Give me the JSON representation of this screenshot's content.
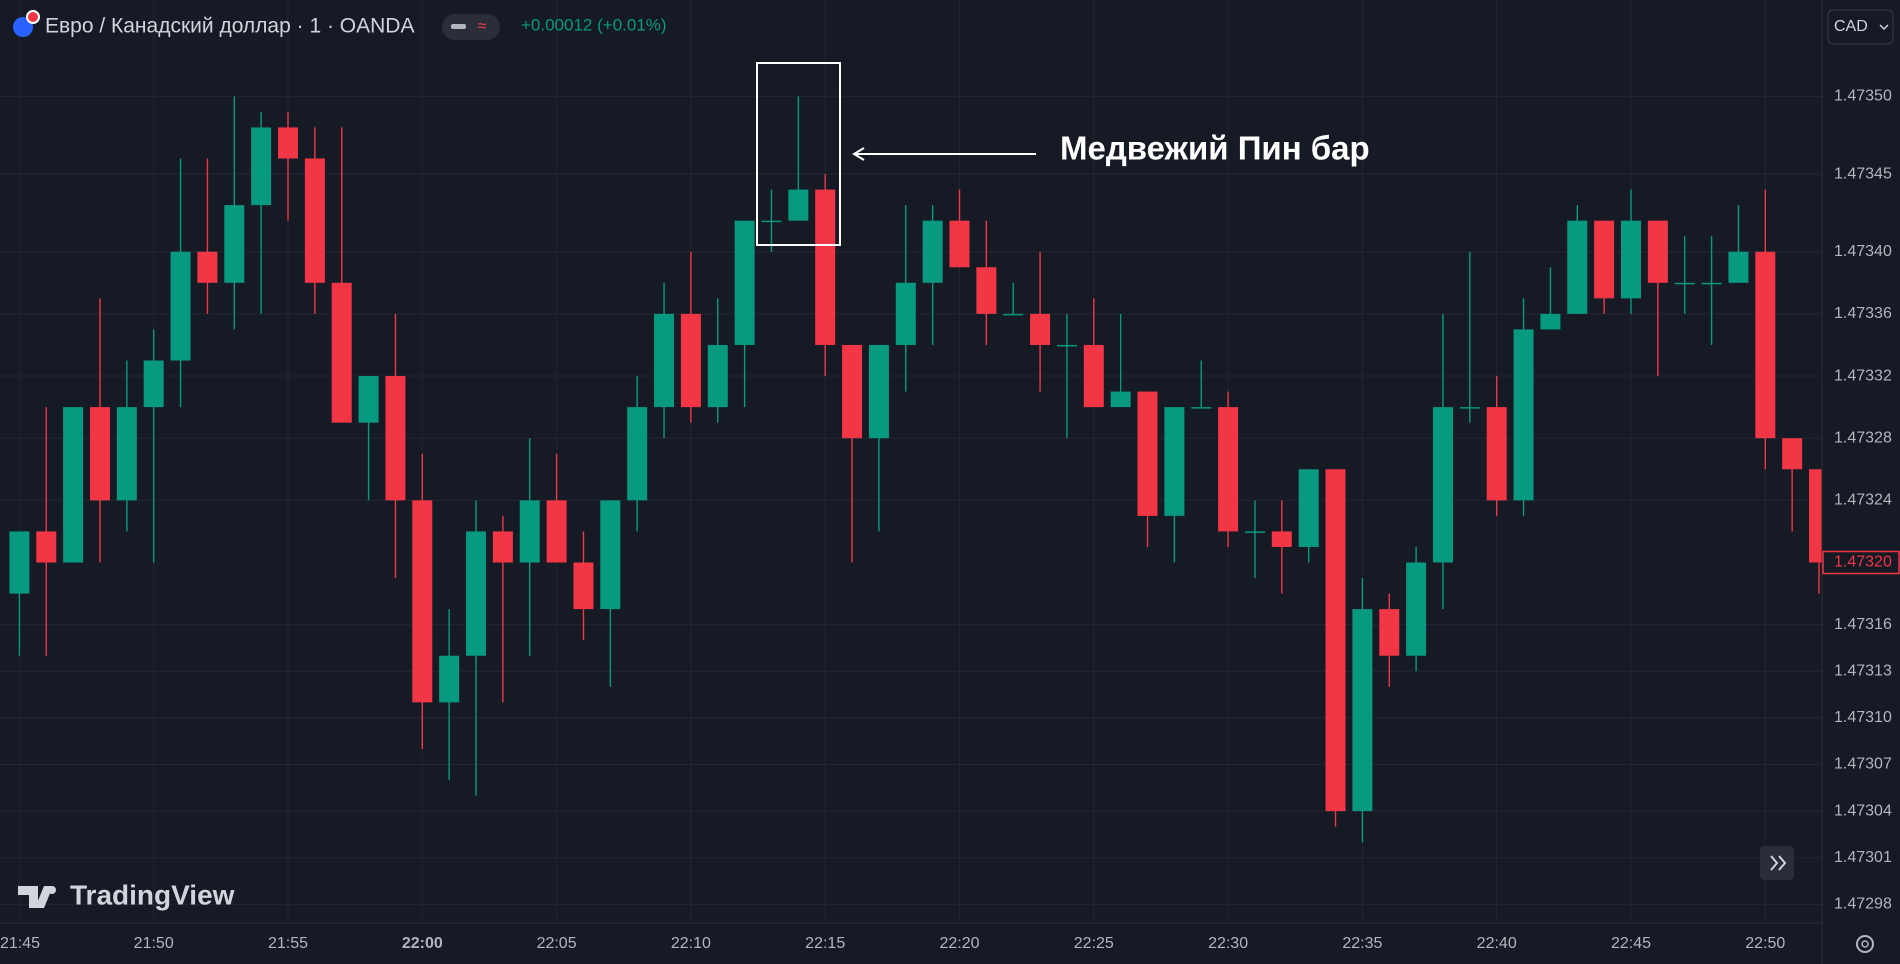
{
  "chart_data": {
    "type": "candlestick",
    "title": "Евро / Канадский доллар · 1 · OANDA",
    "change": "+0.00012 (+0.01%)",
    "currency": "CAD",
    "watermark": "TradingView",
    "annotation": "Медвежий Пин бар",
    "up_color": "#089981",
    "down_color": "#f23645",
    "grid": true,
    "categories": [
      "21:45",
      null,
      null,
      null,
      null,
      "21:50",
      null,
      null,
      null,
      null,
      "21:55",
      null,
      null,
      null,
      null,
      "22:00",
      null,
      null,
      null,
      null,
      "22:05",
      null,
      null,
      null,
      null,
      "22:10",
      null,
      null,
      null,
      null,
      "22:15",
      null,
      null,
      null,
      null,
      "22:20",
      null,
      null,
      null,
      null,
      "22:25",
      null,
      null,
      null,
      null,
      "22:30",
      null,
      null,
      null,
      null,
      "22:35",
      null,
      null,
      null,
      null,
      "22:40",
      null,
      null,
      null,
      null,
      "22:45",
      null,
      null,
      null,
      null,
      "22:50",
      null,
      null
    ],
    "open": [
      1.47318,
      1.47322,
      1.4732,
      1.4733,
      1.47324,
      1.4733,
      1.47333,
      1.4734,
      1.47338,
      1.47343,
      1.47348,
      1.47346,
      1.47338,
      1.47329,
      1.47332,
      1.47324,
      1.47311,
      1.47314,
      1.47322,
      1.4732,
      1.47324,
      1.4732,
      1.47317,
      1.47324,
      1.4733,
      1.47336,
      1.4733,
      1.47334,
      1.47342,
      1.47342,
      1.47344,
      1.47334,
      1.47328,
      1.47334,
      1.47338,
      1.47342,
      1.47339,
      1.47336,
      1.47336,
      1.47334,
      1.47334,
      1.4733,
      1.47331,
      1.47323,
      1.4733,
      1.4733,
      1.47322,
      1.47322,
      1.47321,
      1.47326,
      1.47304,
      1.47317,
      1.47314,
      1.4732,
      1.4733,
      1.4733,
      1.47324,
      1.47335,
      1.47336,
      1.47342,
      1.47337,
      1.47342,
      1.47338,
      1.47338,
      1.47338,
      1.4734,
      1.47328,
      1.47326
    ],
    "high": [
      1.47322,
      1.4733,
      1.4733,
      1.47337,
      1.47333,
      1.47335,
      1.47346,
      1.47346,
      1.4735,
      1.47349,
      1.47349,
      1.47348,
      1.47348,
      1.47332,
      1.47336,
      1.47327,
      1.47317,
      1.47324,
      1.47323,
      1.47328,
      1.47327,
      1.47322,
      1.47324,
      1.47332,
      1.47338,
      1.4734,
      1.47337,
      1.47342,
      1.47344,
      1.4735,
      1.47345,
      1.47334,
      1.47334,
      1.47343,
      1.47343,
      1.47344,
      1.47342,
      1.47338,
      1.4734,
      1.47336,
      1.47337,
      1.47336,
      1.47331,
      1.4733,
      1.47333,
      1.47331,
      1.47324,
      1.47324,
      1.47326,
      1.47326,
      1.47319,
      1.47318,
      1.47321,
      1.47336,
      1.4734,
      1.47332,
      1.47337,
      1.47339,
      1.47343,
      1.47342,
      1.47344,
      1.47342,
      1.47341,
      1.47341,
      1.47343,
      1.47344,
      1.47328,
      1.47326
    ],
    "low": [
      1.47314,
      1.47314,
      1.4732,
      1.4732,
      1.47322,
      1.4732,
      1.4733,
      1.47336,
      1.47335,
      1.47336,
      1.47342,
      1.47336,
      1.47329,
      1.47324,
      1.47319,
      1.47308,
      1.47306,
      1.47305,
      1.47311,
      1.47314,
      1.4732,
      1.47315,
      1.47312,
      1.47322,
      1.47328,
      1.47329,
      1.47329,
      1.4733,
      1.4734,
      1.47342,
      1.47332,
      1.4732,
      1.47322,
      1.47331,
      1.47334,
      1.47339,
      1.47334,
      1.47336,
      1.47331,
      1.47328,
      1.4733,
      1.4733,
      1.47321,
      1.4732,
      1.4733,
      1.47321,
      1.47319,
      1.47318,
      1.4732,
      1.47303,
      1.47302,
      1.47312,
      1.47313,
      1.47317,
      1.47329,
      1.47323,
      1.47323,
      1.47335,
      1.47336,
      1.47336,
      1.47336,
      1.47332,
      1.47336,
      1.47334,
      1.47338,
      1.47326,
      1.47322,
      1.47318
    ],
    "close": [
      1.47322,
      1.4732,
      1.4733,
      1.47324,
      1.4733,
      1.47333,
      1.4734,
      1.47338,
      1.47343,
      1.47348,
      1.47346,
      1.47338,
      1.47329,
      1.47332,
      1.47324,
      1.47311,
      1.47314,
      1.47322,
      1.4732,
      1.47324,
      1.4732,
      1.47317,
      1.47324,
      1.4733,
      1.47336,
      1.4733,
      1.47334,
      1.47342,
      1.47342,
      1.47344,
      1.47334,
      1.47328,
      1.47334,
      1.47338,
      1.47342,
      1.47339,
      1.47336,
      1.47336,
      1.47334,
      1.47334,
      1.4733,
      1.47331,
      1.47323,
      1.4733,
      1.4733,
      1.47322,
      1.47322,
      1.47321,
      1.47326,
      1.47304,
      1.47317,
      1.47314,
      1.4732,
      1.4733,
      1.4733,
      1.47324,
      1.47335,
      1.47336,
      1.47342,
      1.47337,
      1.47342,
      1.47338,
      1.47338,
      1.47338,
      1.4734,
      1.47328,
      1.47326,
      1.4732
    ],
    "ylim": [
      1.472968,
      1.473562
    ],
    "yticks": [
      {
        "value": 1.4735,
        "label": "1.47350"
      },
      1.47345,
      {
        "value": 1.4734,
        "label": "1.47340"
      },
      1.47336,
      1.47332,
      1.47328,
      1.47324,
      1.47316,
      1.47313,
      {
        "value": 1.4731,
        "label": "1.47310"
      },
      1.47307,
      1.47304,
      1.47301,
      1.47298
    ],
    "last_price": {
      "value": 1.4732,
      "label": "1.47320"
    }
  }
}
